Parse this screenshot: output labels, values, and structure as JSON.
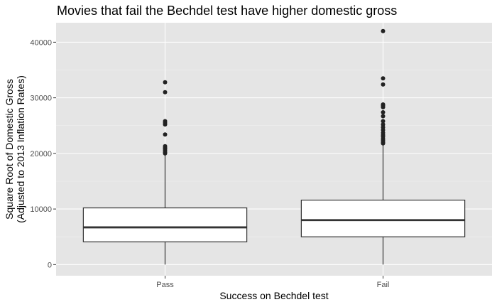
{
  "chart_data": {
    "type": "boxplot",
    "title": "Movies that fail the Bechdel test have higher domestic gross",
    "xlabel": "Success on Bechdel test",
    "ylabel_lines": [
      "Square Root of Domestic Gross",
      "(Adjusted to 2013 Inflation Rates)"
    ],
    "categories": [
      "Pass",
      "Fail"
    ],
    "ylim": [
      -2000,
      43500
    ],
    "yticks": [
      0,
      10000,
      20000,
      30000,
      40000
    ],
    "ytick_labels": [
      "0",
      "10000",
      "20000",
      "30000",
      "40000"
    ],
    "grid": true,
    "boxes": [
      {
        "category": "Pass",
        "min": 0,
        "q1": 4100,
        "median": 6700,
        "q3": 10200,
        "whisker_high": 19700,
        "outliers": [
          20000,
          20200,
          20500,
          20800,
          21000,
          21300,
          23400,
          25200,
          25500,
          25800,
          31000,
          32800
        ]
      },
      {
        "category": "Fail",
        "min": 0,
        "q1": 5000,
        "median": 8000,
        "q3": 11600,
        "whisker_high": 21600,
        "outliers": [
          21800,
          22000,
          22300,
          22600,
          23000,
          23300,
          23700,
          24200,
          24700,
          25200,
          25800,
          26700,
          27400,
          28300,
          28600,
          28800,
          32400,
          33500,
          42000
        ]
      }
    ],
    "colors": {
      "panel_bg": "#e5e5e5",
      "grid_major": "#ffffff",
      "grid_minor": "#f2f2f2",
      "box_fill": "#ffffff",
      "box_stroke": "#333333",
      "outlier": "#222222"
    }
  }
}
